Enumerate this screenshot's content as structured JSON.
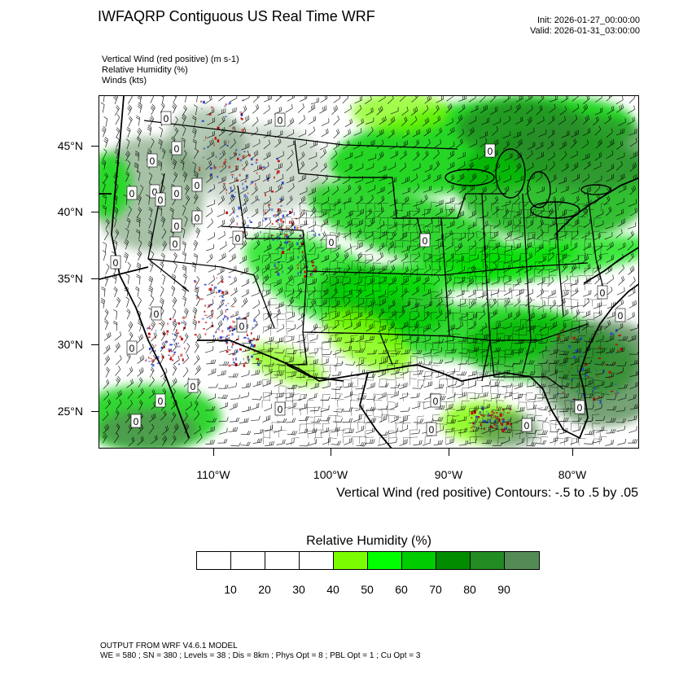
{
  "header": {
    "title": "IWFAQRP Contiguous US Real Time WRF",
    "init": "Init: 2026-01-27_00:00:00",
    "valid": "Valid: 2026-01-31_03:00:00"
  },
  "fields": [
    "Vertical Wind (red positive)   (m s-1)",
    "Relative Humidity   (%)",
    "Winds   (kts)"
  ],
  "map": {
    "lat_labels": [
      "45°N",
      "40°N",
      "35°N",
      "30°N",
      "25°N"
    ],
    "lon_labels": [
      "110°W",
      "100°W",
      "90°W",
      "80°W"
    ],
    "contour_info": "Vertical Wind (red positive) Contours: -.5 to .5 by .05",
    "contour_zero_label": "0"
  },
  "legend": {
    "title": "Relative Humidity  (%)",
    "colors": [
      "#ffffff",
      "#ffffff",
      "#ffffff",
      "#ffffff",
      "#7cfc00",
      "#00ff00",
      "#00cd00",
      "#008b00",
      "#228b22",
      "#548b54"
    ],
    "ticks": [
      "10",
      "20",
      "30",
      "40",
      "50",
      "60",
      "70",
      "80",
      "90"
    ]
  },
  "footer": {
    "line1": "OUTPUT FROM WRF V4.6.1 MODEL",
    "line2": "WE = 580 ; SN = 380 ; Levels = 38 ; Dis = 8km ; Phys Opt = 8 ; PBL Opt = 1 ; Cu Opt = 3"
  }
}
